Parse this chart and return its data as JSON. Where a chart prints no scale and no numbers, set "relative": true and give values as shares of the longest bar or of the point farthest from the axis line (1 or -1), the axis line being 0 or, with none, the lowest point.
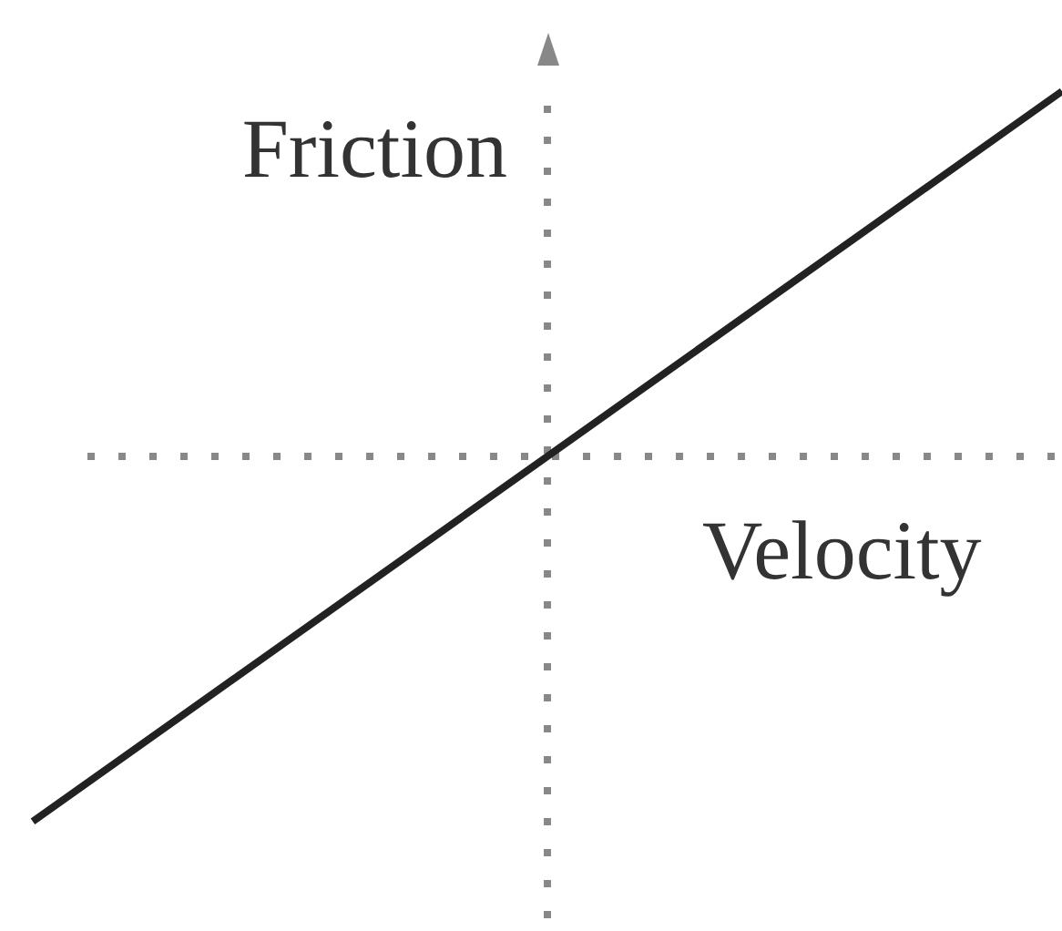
{
  "chart_data": {
    "type": "line",
    "xlabel": "Velocity",
    "ylabel": "Friction",
    "categories": [
      null,
      null,
      null
    ],
    "values": [
      -1,
      0,
      1
    ],
    "color": "#222222",
    "relative": true
  }
}
